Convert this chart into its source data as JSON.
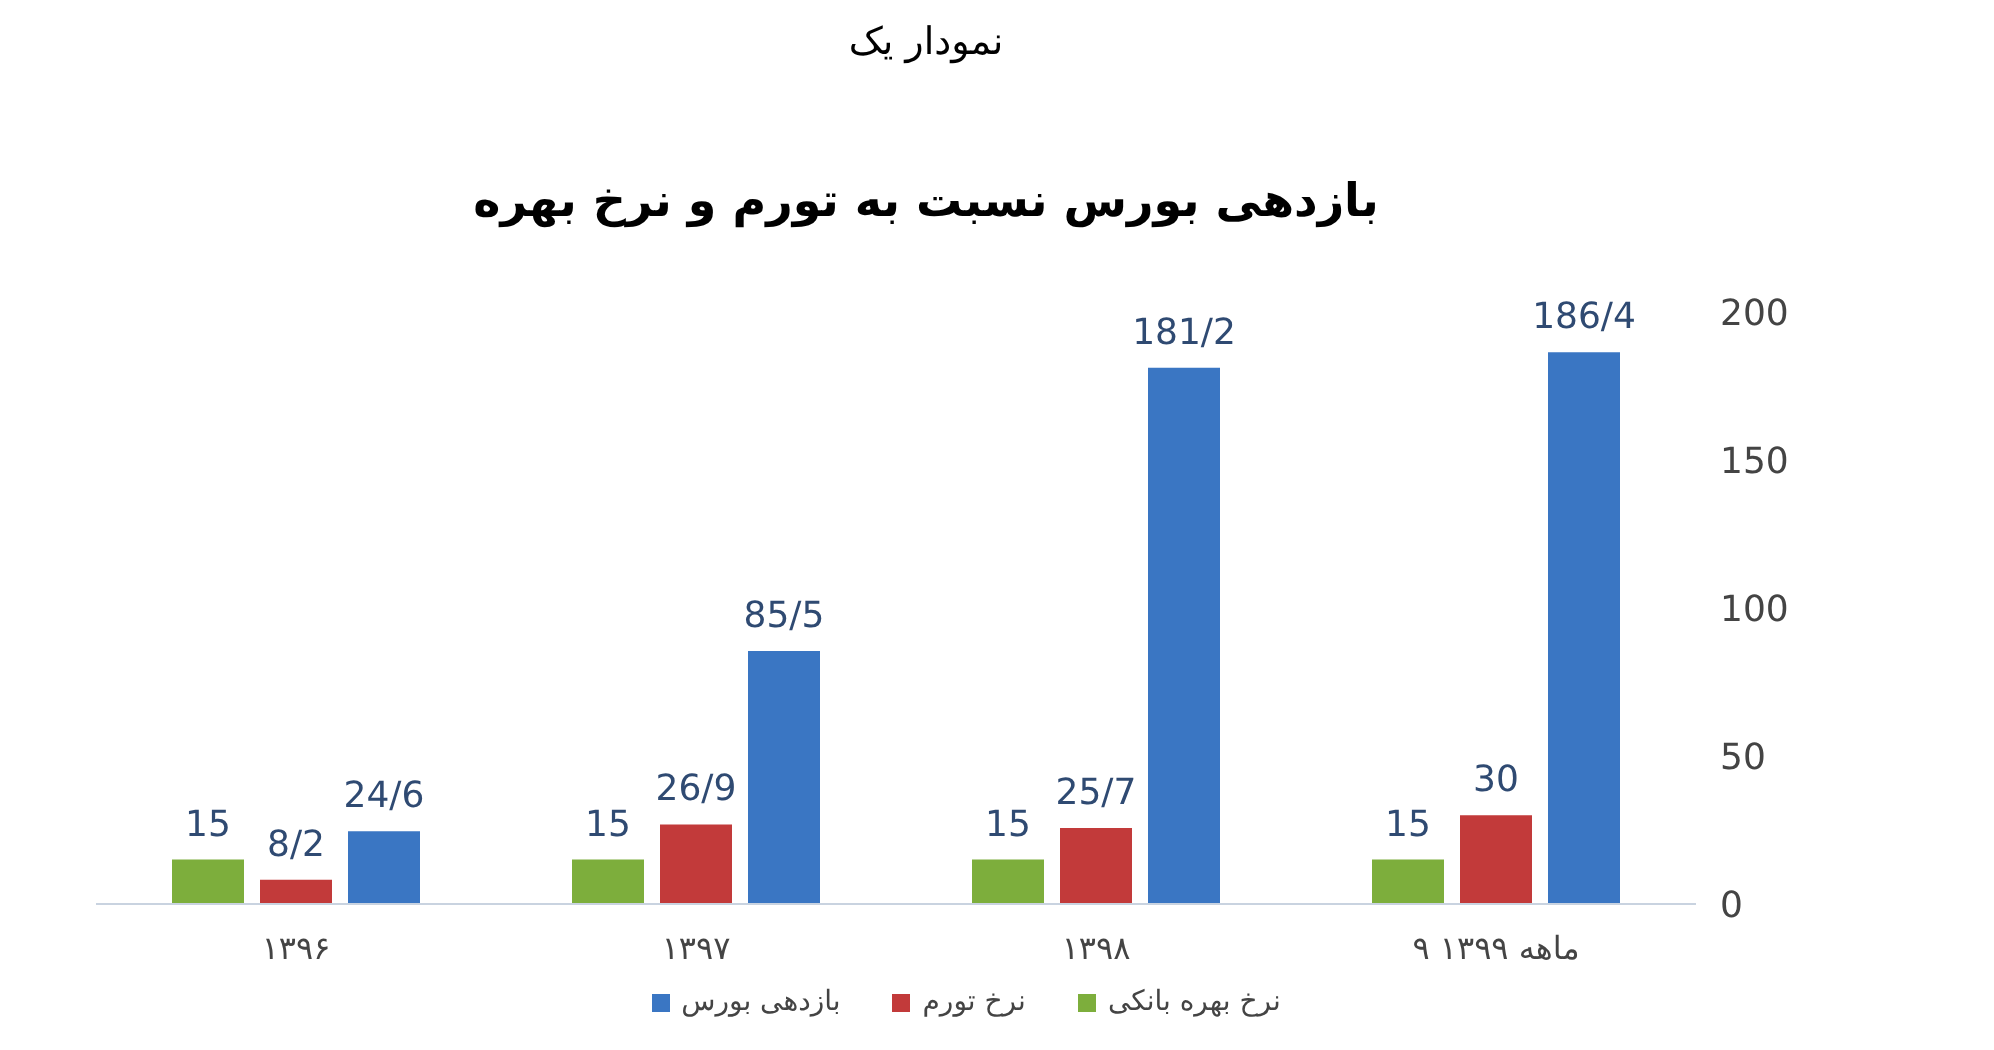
{
  "chart_data": {
    "type": "bar",
    "title": "بازدهی بورس نسبت به تورم و نرخ بهره",
    "annotations": [
      "نمودار یک"
    ],
    "categories": [
      "۱۳۹۶",
      "۱۳۹۷",
      "۱۳۹۸",
      "۹ ماهه ۱۳۹۹"
    ],
    "series": [
      {
        "name": "نرخ بهره بانکی",
        "color": "#7dae3c",
        "values": [
          15,
          15,
          15,
          15
        ],
        "value_labels": [
          "15",
          "15",
          "15",
          "15"
        ]
      },
      {
        "name": "نرخ تورم",
        "color": "#c23a3a",
        "values": [
          8.2,
          26.9,
          25.7,
          30
        ],
        "value_labels": [
          "8/2",
          "26/9",
          "25/7",
          "30"
        ]
      },
      {
        "name": "بازدهی بورس",
        "color": "#3a76c3",
        "values": [
          24.6,
          85.5,
          181.2,
          186.4
        ],
        "value_labels": [
          "24/6",
          "85/5",
          "181/2",
          "186/4"
        ]
      }
    ],
    "ylim": [
      0,
      200
    ],
    "yticks": [
      0,
      50,
      100,
      150,
      200
    ],
    "grid": false,
    "legend": "bottom"
  }
}
